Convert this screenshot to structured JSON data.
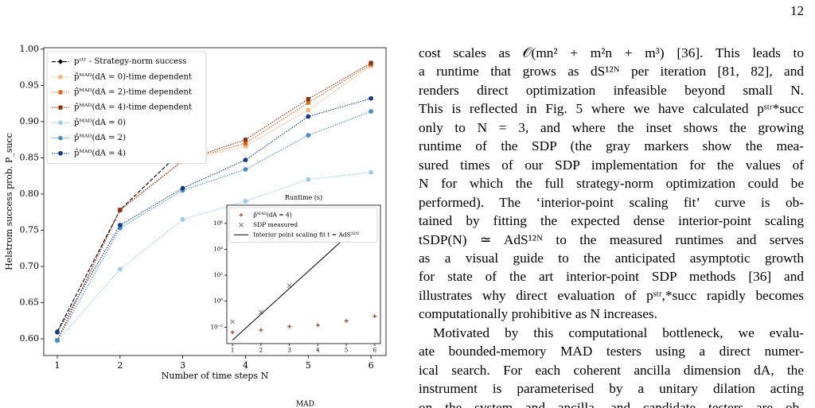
{
  "page_number": "12",
  "chart_data": [
    {
      "type": "line",
      "xlabel": "Number of time steps N",
      "ylabel": "Helstrom success prob. P_succ",
      "x": [
        1,
        2,
        3,
        4,
        5,
        6
      ],
      "xlim": [
        0.784,
        6.24
      ],
      "xticks": [
        1,
        2,
        3,
        4,
        5,
        6
      ],
      "ylim": [
        0.577,
        1.002
      ],
      "yticks": [
        {
          "value": 0.6,
          "label": "0.60"
        },
        {
          "value": 0.65,
          "label": "0.65"
        },
        {
          "value": 0.7,
          "label": "0.70"
        },
        {
          "value": 0.75,
          "label": "0.75"
        },
        {
          "value": 0.8,
          "label": "0.80"
        },
        {
          "value": 0.85,
          "label": "0.85"
        },
        {
          "value": 0.9,
          "label": "0.90"
        },
        {
          "value": 0.95,
          "label": "0.95"
        },
        {
          "value": 1.0,
          "label": "1.00"
        }
      ],
      "grid": false,
      "legend": "upper left",
      "series": [
        {
          "name": "pˢᵗʳ - Strategy-norm success",
          "color": "#000000",
          "marker": "diamond",
          "linestyle": "dashed",
          "values": [
            0.61,
            0.778,
            0.861,
            null,
            null,
            null
          ]
        },
        {
          "name": "p̂ᴹᴬᴰ(dA = 0)-time dependent",
          "color": "#f5b47f",
          "marker": "square",
          "linestyle": "dotted",
          "values": [
            0.598,
            0.778,
            0.845,
            0.866,
            0.916,
            0.977
          ]
        },
        {
          "name": "p̂ᴹᴬᴰ(dA = 2)-time dependent",
          "color": "#e0651c",
          "marker": "square",
          "linestyle": "dotted",
          "values": [
            0.598,
            0.778,
            0.846,
            0.87,
            0.926,
            0.979
          ]
        },
        {
          "name": "p̂ᴹᴬᴰ(dA = 4)-time dependent",
          "color": "#8a2c0a",
          "marker": "square",
          "linestyle": "dotted",
          "values": [
            0.598,
            0.778,
            0.846,
            0.875,
            0.931,
            0.981
          ]
        },
        {
          "name": "p̂ᴹᴬᴰ(dA = 0)",
          "color": "#9ccbe6",
          "marker": "circle",
          "linestyle": "dotted",
          "values": [
            0.597,
            0.696,
            0.765,
            0.79,
            0.82,
            0.83
          ]
        },
        {
          "name": "p̂ᴹᴬᴰ(dA = 2)",
          "color": "#4a8cc4",
          "marker": "circle",
          "linestyle": "dotted",
          "values": [
            0.598,
            0.753,
            0.805,
            0.834,
            0.881,
            0.914
          ]
        },
        {
          "name": "p̂ᴹᴬᴰ(dA = 4)",
          "color": "#0e3c86",
          "marker": "circle",
          "linestyle": "dotted",
          "values": [
            0.609,
            0.757,
            0.808,
            0.847,
            0.907,
            0.932
          ]
        }
      ]
    },
    {
      "type": "scatter",
      "title": "Runtime (s)",
      "log_scale": "y",
      "xlim": [
        0.8,
        6.2
      ],
      "xticks": [
        1,
        2,
        3,
        4,
        5,
        6
      ],
      "ylim": [
        0.00054,
        25000000
      ],
      "yticks": [
        {
          "value": 0.01,
          "label": "10⁻²"
        },
        {
          "value": 1,
          "label": "10⁰"
        },
        {
          "value": 100,
          "label": "10²"
        },
        {
          "value": 10000,
          "label": "10⁴"
        },
        {
          "value": 1000000,
          "label": "10⁶"
        }
      ],
      "legend": "upper left",
      "series": [
        {
          "name": "p̂ᴹᴬᴰ(dA = 4)",
          "color": "#8a2c0a",
          "marker": "plus",
          "linestyle": "none",
          "x": [
            1,
            2,
            3,
            4,
            5,
            6
          ],
          "values": [
            0.004,
            0.006,
            0.011,
            0.014,
            0.03,
            0.07
          ]
        },
        {
          "name": "SDP measured",
          "color": "#777777",
          "marker": "x",
          "linestyle": "none",
          "x": [
            1,
            2,
            3
          ],
          "values": [
            0.026,
            0.14,
            16
          ]
        },
        {
          "name": "Interior point scaling fit t ≃ AdS¹²ᴺ",
          "color": "#000000",
          "marker": "none",
          "linestyle": "solid",
          "x": [
            1,
            6
          ],
          "values": [
            0.001,
            9000000
          ]
        }
      ]
    }
  ],
  "paragraphs": [
    {
      "lines": [
        "cost scales as 𝒪(mn² + m²n + m³) [36]. This leads to",
        "a runtime that grows as dS¹²ᴺ per iteration [81, 82], and",
        "renders direct optimization infeasible beyond small N.",
        "This is reflected in Fig. 5 where we have calculated pˢᵗʳ*succ",
        "only to N = 3, and where the inset shows the growing",
        "runtime of the SDP (the gray markers show the mea-",
        "sured times of our SDP implementation for the values of",
        "N for which the full strategy-norm optimization could be",
        "performed). The ‘interior-point scaling fit’ curve is ob-",
        "tained by fitting the expected dense interior-point scaling",
        "tSDP(N) ≃ AdS¹²ᴺ to the measured runtimes and serves",
        "as a visual guide to the anticipated asymptotic growth",
        "for state of the art interior-point SDP methods [36] and",
        "illustrates why direct evaluation of pˢᵗʳ,*succ rapidly becomes",
        "computationally prohibitive as N increases."
      ]
    },
    {
      "lines": [
        "Motivated by this computational bottleneck, we evalu-",
        "ate bounded-memory MAD testers using a direct numer-",
        "ical search. For each coherent ancilla dimension dA, the",
        "instrument is parameterised by a unitary dilation acting",
        "on the system and ancilla, and candidate testers are ob-"
      ]
    }
  ],
  "caption_fragment": "MAD"
}
